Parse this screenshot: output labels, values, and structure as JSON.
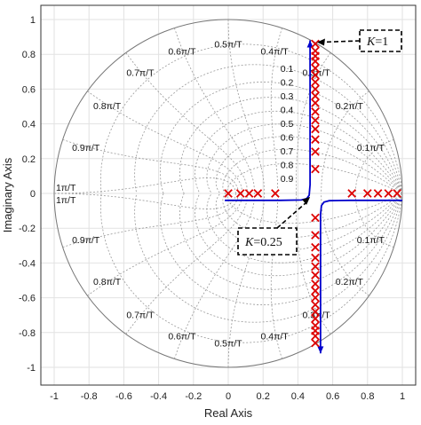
{
  "chart_data": {
    "type": "scatter",
    "title": "",
    "xlabel": "Real Axis",
    "ylabel": "Imaginary Axis",
    "xlim": [
      -1.1,
      1.05
    ],
    "ylim": [
      -1.1,
      1.05
    ],
    "grid": true,
    "x_ticks": [
      "-1",
      "-0.8",
      "-0.6",
      "-0.4",
      "-0.2",
      "0",
      "0.2",
      "0.4",
      "0.6",
      "0.8",
      "1"
    ],
    "y_ticks": [
      "1",
      "0.8",
      "0.6",
      "0.4",
      "0.2",
      "0",
      "-0.2",
      "-0.4",
      "-0.6",
      "-0.8",
      "-1"
    ],
    "damping_labels": [
      "0.1",
      "0.2",
      "0.3",
      "0.4",
      "0.5",
      "0.6",
      "0.7",
      "0.8",
      "0.9"
    ],
    "frequency_labels_upper": [
      {
        "text": "0.5π/T",
        "theta_frac": 0.5
      },
      {
        "text": "0.4π/T",
        "theta_frac": 0.4
      },
      {
        "text": "0.6π/T",
        "theta_frac": 0.6
      },
      {
        "text": "0.3π/T",
        "theta_frac": 0.3
      },
      {
        "text": "0.7π/T",
        "theta_frac": 0.7
      },
      {
        "text": "0.2π/T",
        "theta_frac": 0.2
      },
      {
        "text": "0.8π/T",
        "theta_frac": 0.8
      },
      {
        "text": "0.1π/T",
        "theta_frac": 0.1
      },
      {
        "text": "0.9π/T",
        "theta_frac": 0.9
      },
      {
        "text": "1π/T",
        "theta_frac": 1.0
      }
    ],
    "frequency_labels_lower": [
      {
        "text": "1π/T",
        "theta_frac": 1.0
      },
      {
        "text": "0.9π/T",
        "theta_frac": 0.9
      },
      {
        "text": "0.1π/T",
        "theta_frac": 0.1
      },
      {
        "text": "0.8π/T",
        "theta_frac": 0.8
      },
      {
        "text": "0.2π/T",
        "theta_frac": 0.2
      },
      {
        "text": "0.7π/T",
        "theta_frac": 0.7
      },
      {
        "text": "0.3π/T",
        "theta_frac": 0.3
      },
      {
        "text": "0.6π/T",
        "theta_frac": 0.6
      },
      {
        "text": "0.4π/T",
        "theta_frac": 0.4
      },
      {
        "text": "0.5π/T",
        "theta_frac": 0.5
      }
    ],
    "series": [
      {
        "marker": "x",
        "color": "#dd0000",
        "points": [
          [
            0.0,
            0.0
          ],
          [
            0.07,
            0.0
          ],
          [
            0.12,
            0.0
          ],
          [
            0.17,
            0.0
          ],
          [
            0.27,
            0.0
          ],
          [
            0.71,
            0.0
          ],
          [
            0.8,
            0.0
          ],
          [
            0.86,
            0.0
          ],
          [
            0.92,
            0.0
          ],
          [
            0.97,
            0.0
          ],
          [
            0.5,
            0.86
          ],
          [
            0.5,
            0.82
          ],
          [
            0.5,
            0.79
          ],
          [
            0.5,
            0.76
          ],
          [
            0.5,
            0.72
          ],
          [
            0.5,
            0.68
          ],
          [
            0.5,
            0.64
          ],
          [
            0.5,
            0.6
          ],
          [
            0.5,
            0.56
          ],
          [
            0.5,
            0.52
          ],
          [
            0.5,
            0.47
          ],
          [
            0.5,
            0.42
          ],
          [
            0.5,
            0.37
          ],
          [
            0.5,
            0.31
          ],
          [
            0.5,
            0.24
          ],
          [
            0.5,
            0.14
          ],
          [
            0.5,
            -0.86
          ],
          [
            0.5,
            -0.82
          ],
          [
            0.5,
            -0.79
          ],
          [
            0.5,
            -0.76
          ],
          [
            0.5,
            -0.72
          ],
          [
            0.5,
            -0.68
          ],
          [
            0.5,
            -0.64
          ],
          [
            0.5,
            -0.6
          ],
          [
            0.5,
            -0.56
          ],
          [
            0.5,
            -0.52
          ],
          [
            0.5,
            -0.47
          ],
          [
            0.5,
            -0.42
          ],
          [
            0.5,
            -0.37
          ],
          [
            0.5,
            -0.31
          ],
          [
            0.5,
            -0.24
          ],
          [
            0.5,
            -0.14
          ]
        ]
      },
      {
        "type": "line",
        "color": "#0000cc",
        "branches": [
          [
            [
              -0.02,
              -0.04
            ],
            [
              0.3,
              -0.04
            ],
            [
              0.42,
              -0.038
            ],
            [
              0.45,
              -0.03
            ],
            [
              0.465,
              -0.01
            ],
            [
              0.47,
              0.05
            ],
            [
              0.47,
              0.2
            ],
            [
              0.47,
              0.6
            ],
            [
              0.47,
              0.88
            ]
          ],
          [
            [
              1.0,
              -0.04
            ],
            [
              0.7,
              -0.04
            ],
            [
              0.58,
              -0.042
            ],
            [
              0.55,
              -0.05
            ],
            [
              0.535,
              -0.07
            ],
            [
              0.53,
              -0.12
            ],
            [
              0.53,
              -0.4
            ],
            [
              0.53,
              -0.7
            ],
            [
              0.53,
              -0.92
            ]
          ]
        ]
      }
    ],
    "annotations": [
      {
        "text": "K=1",
        "k_letter": "K",
        "k_value": "=1",
        "anchor_x": 0.51,
        "anchor_y": 0.87
      },
      {
        "text": "K=0.25",
        "k_letter": "K",
        "k_value": "=0.25",
        "anchor_x": 0.47,
        "anchor_y": -0.02
      }
    ]
  }
}
